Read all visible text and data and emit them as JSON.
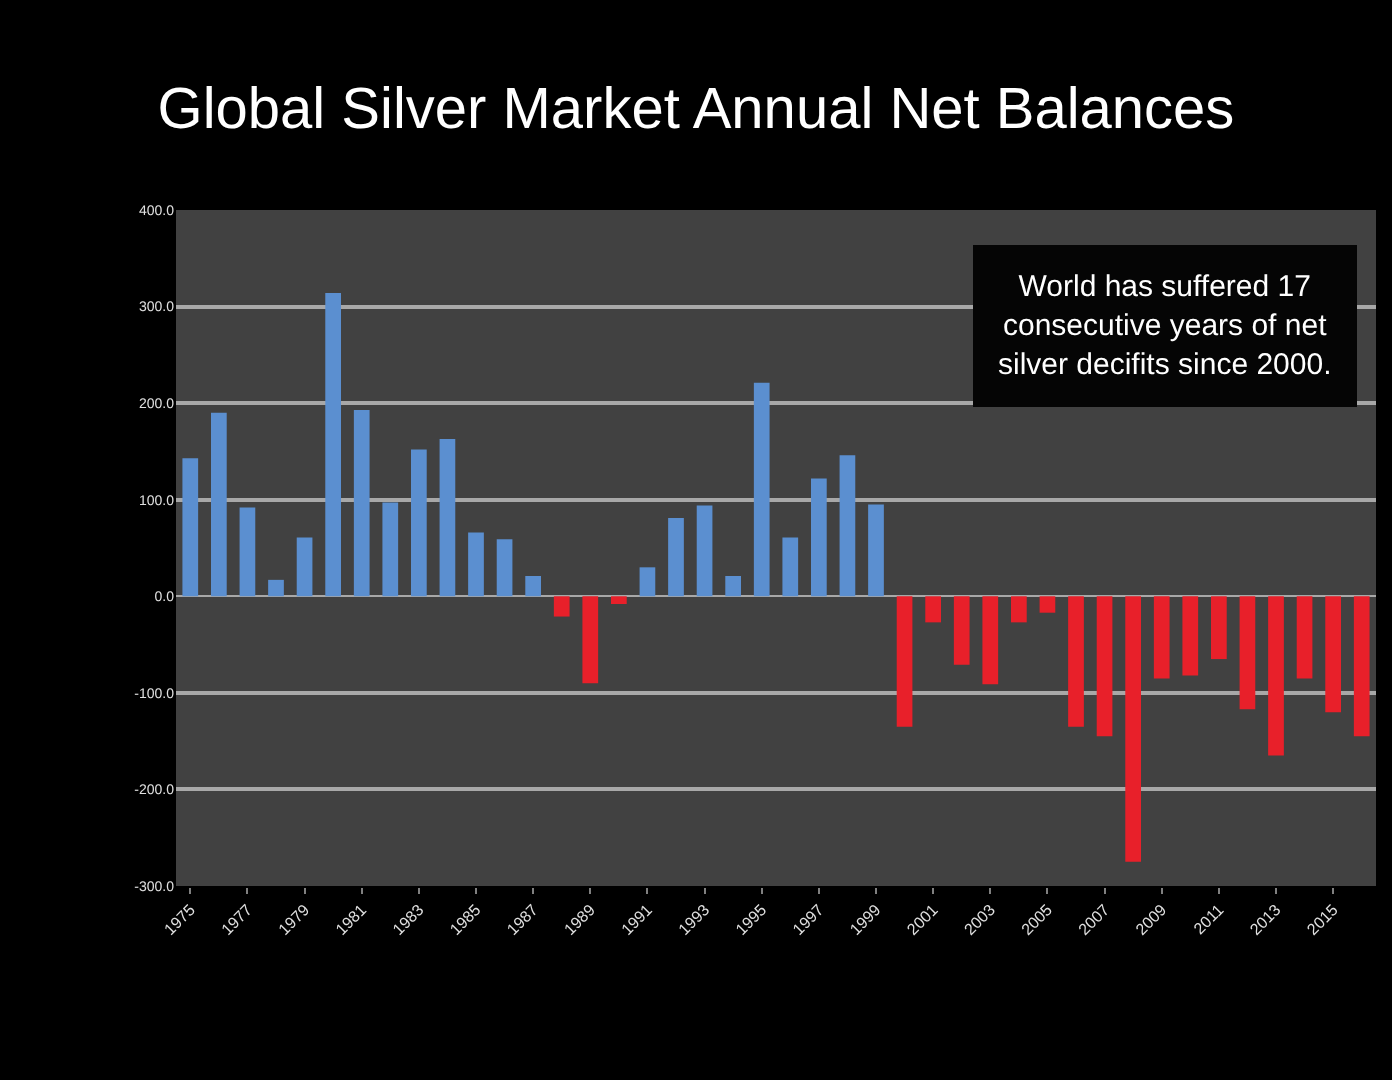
{
  "chart_data": {
    "type": "bar",
    "title": "Global Silver Market Annual Net Balances",
    "categories": [
      "1975",
      null,
      "1977",
      null,
      "1979",
      null,
      "1981",
      null,
      "1983",
      null,
      "1985",
      null,
      "1987",
      null,
      "1989",
      null,
      "1991",
      null,
      "1993",
      null,
      "1995",
      null,
      "1997",
      null,
      "1999",
      null,
      "2001",
      null,
      "2003",
      null,
      "2005",
      null,
      "2007",
      null,
      "2009",
      null,
      "2011",
      null,
      "2013",
      null,
      "2015",
      null
    ],
    "values": [
      143,
      190,
      92,
      17,
      61,
      314,
      193,
      97,
      152,
      163,
      66,
      59,
      21,
      -21,
      -90,
      -8,
      30,
      81,
      94,
      21,
      221,
      61,
      122,
      146,
      95,
      -135,
      -27,
      -71,
      -91,
      -27,
      -17,
      -135,
      -145,
      -275,
      -85,
      -82,
      -65,
      -117,
      -165,
      -85,
      -120,
      -145
    ],
    "colors": [
      "#5b8fd0",
      "#5b8fd0",
      "#5b8fd0",
      "#5b8fd0",
      "#5b8fd0",
      "#5b8fd0",
      "#5b8fd0",
      "#5b8fd0",
      "#5b8fd0",
      "#5b8fd0",
      "#5b8fd0",
      "#5b8fd0",
      "#5b8fd0",
      "#e8202a",
      "#e8202a",
      "#e8202a",
      "#5b8fd0",
      "#5b8fd0",
      "#5b8fd0",
      "#5b8fd0",
      "#5b8fd0",
      "#5b8fd0",
      "#5b8fd0",
      "#5b8fd0",
      "#5b8fd0",
      "#e8202a",
      "#e8202a",
      "#e8202a",
      "#e8202a",
      "#e8202a",
      "#e8202a",
      "#e8202a",
      "#e8202a",
      "#e8202a",
      "#e8202a",
      "#e8202a",
      "#e8202a",
      "#e8202a",
      "#e8202a",
      "#e8202a",
      "#e8202a",
      "#e8202a"
    ],
    "ylim": [
      -300,
      400
    ],
    "yticks": [
      {
        "value": 400,
        "label": "400.0"
      },
      {
        "value": 300,
        "label": "300.0"
      },
      {
        "value": 200,
        "label": "200.0"
      },
      {
        "value": 100,
        "label": "100.0"
      },
      {
        "value": 0,
        "label": "0.0"
      },
      {
        "value": -100,
        "label": "-100.0"
      },
      {
        "value": -200,
        "label": "-200.0"
      },
      {
        "value": -300,
        "label": "-300.0"
      }
    ],
    "grid": "y",
    "annotations": [
      "World has suffered 17\nconsecutive years of net\nsilver decifits since 2000."
    ]
  }
}
